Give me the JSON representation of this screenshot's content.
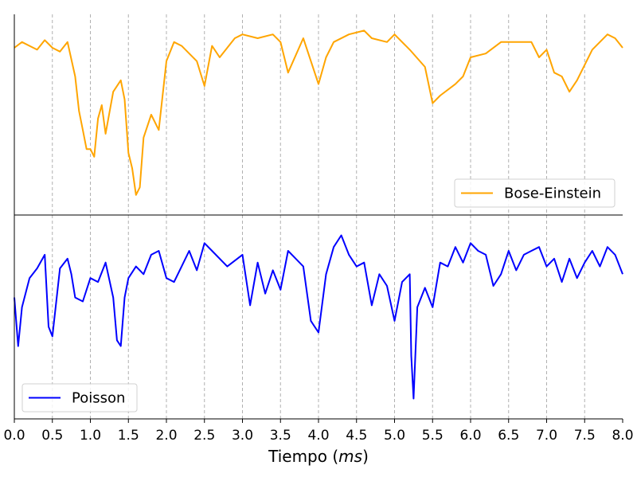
{
  "chart_data": {
    "type": "line",
    "xlabel_main": "Tiempo (",
    "xlabel_unit": "ms",
    "xlabel_close": ")",
    "xlim": [
      0,
      8
    ],
    "x_ticks": [
      "0.0",
      "0.5",
      "1.0",
      "1.5",
      "2.0",
      "2.5",
      "3.0",
      "3.5",
      "4.0",
      "4.5",
      "5.0",
      "5.5",
      "6.0",
      "6.5",
      "7.0",
      "7.5",
      "8.0"
    ],
    "grid": "vertical dashed",
    "panels": [
      {
        "name": "Bose-Einstein",
        "color": "#FFA500",
        "legend_position": "lower-right",
        "ylim": [
          0,
          100
        ],
        "x": [
          0.0,
          0.1,
          0.2,
          0.3,
          0.4,
          0.5,
          0.6,
          0.7,
          0.8,
          0.85,
          0.9,
          0.95,
          1.0,
          1.05,
          1.1,
          1.15,
          1.2,
          1.3,
          1.4,
          1.45,
          1.5,
          1.55,
          1.6,
          1.65,
          1.7,
          1.8,
          1.9,
          2.0,
          2.1,
          2.2,
          2.3,
          2.4,
          2.5,
          2.6,
          2.7,
          2.8,
          2.9,
          3.0,
          3.2,
          3.4,
          3.5,
          3.6,
          3.8,
          4.0,
          4.1,
          4.2,
          4.4,
          4.6,
          4.7,
          4.9,
          5.0,
          5.2,
          5.4,
          5.5,
          5.6,
          5.8,
          5.9,
          6.0,
          6.2,
          6.4,
          6.6,
          6.8,
          6.9,
          7.0,
          7.1,
          7.2,
          7.3,
          7.4,
          7.6,
          7.8,
          7.9,
          8.0
        ],
        "values": [
          85,
          88,
          86,
          84,
          89,
          85,
          83,
          88,
          70,
          52,
          42,
          32,
          32,
          28,
          48,
          55,
          40,
          62,
          68,
          58,
          30,
          22,
          8,
          12,
          38,
          50,
          42,
          78,
          88,
          86,
          82,
          78,
          65,
          86,
          80,
          85,
          90,
          92,
          90,
          92,
          88,
          72,
          90,
          66,
          80,
          88,
          92,
          94,
          90,
          88,
          92,
          84,
          75,
          56,
          60,
          66,
          70,
          80,
          82,
          88,
          88,
          88,
          80,
          84,
          72,
          70,
          62,
          68,
          84,
          92,
          90,
          85
        ]
      },
      {
        "name": "Poisson",
        "color": "#0000FF",
        "legend_position": "lower-left",
        "ylim": [
          0,
          100
        ],
        "x": [
          0.0,
          0.05,
          0.1,
          0.2,
          0.3,
          0.4,
          0.45,
          0.5,
          0.6,
          0.7,
          0.75,
          0.8,
          0.9,
          1.0,
          1.1,
          1.2,
          1.3,
          1.35,
          1.4,
          1.45,
          1.5,
          1.6,
          1.7,
          1.8,
          1.9,
          2.0,
          2.1,
          2.2,
          2.3,
          2.4,
          2.5,
          2.6,
          2.8,
          3.0,
          3.1,
          3.2,
          3.3,
          3.4,
          3.5,
          3.6,
          3.7,
          3.8,
          3.9,
          4.0,
          4.1,
          4.2,
          4.3,
          4.4,
          4.5,
          4.6,
          4.7,
          4.8,
          4.9,
          5.0,
          5.1,
          5.2,
          5.22,
          5.25,
          5.3,
          5.4,
          5.5,
          5.6,
          5.7,
          5.8,
          5.9,
          6.0,
          6.1,
          6.2,
          6.3,
          6.4,
          6.5,
          6.6,
          6.7,
          6.8,
          6.9,
          7.0,
          7.1,
          7.2,
          7.3,
          7.4,
          7.5,
          7.6,
          7.7,
          7.8,
          7.9,
          8.0
        ],
        "values": [
          60,
          35,
          55,
          70,
          75,
          82,
          45,
          40,
          75,
          80,
          72,
          60,
          58,
          70,
          68,
          78,
          60,
          38,
          35,
          60,
          70,
          76,
          72,
          82,
          84,
          70,
          68,
          76,
          84,
          74,
          88,
          84,
          76,
          82,
          56,
          78,
          62,
          74,
          64,
          84,
          80,
          76,
          48,
          42,
          72,
          86,
          92,
          82,
          76,
          78,
          56,
          72,
          66,
          48,
          68,
          72,
          30,
          8,
          55,
          65,
          55,
          78,
          76,
          86,
          78,
          88,
          84,
          82,
          66,
          72,
          84,
          74,
          82,
          84,
          86,
          76,
          80,
          68,
          80,
          70,
          78,
          84,
          76,
          86,
          82,
          72
        ]
      }
    ]
  }
}
